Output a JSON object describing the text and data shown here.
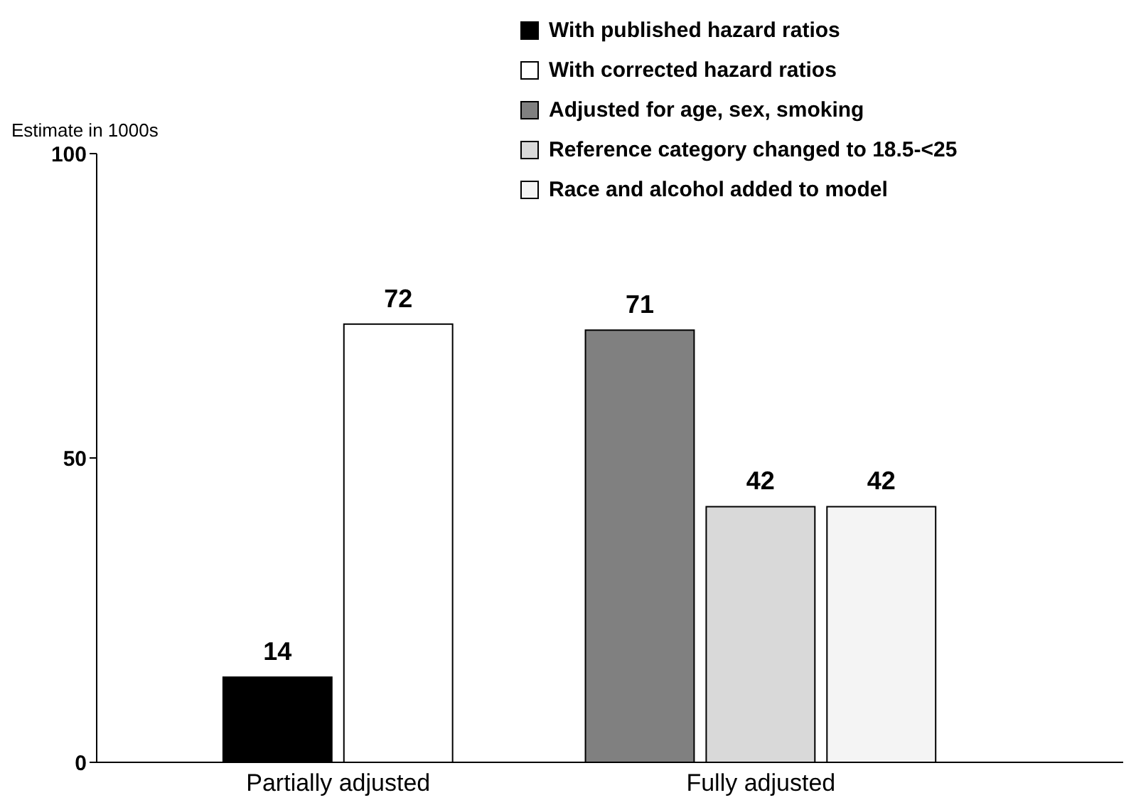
{
  "chart_data": {
    "type": "bar",
    "ylabel": "Estimate in 1000s",
    "categories": [
      "Partially adjusted",
      "Fully adjusted"
    ],
    "series": [
      {
        "name": "With published hazard ratios",
        "color": "#000000",
        "values": [
          14,
          null
        ]
      },
      {
        "name": "With corrected hazard ratios",
        "color": "#ffffff",
        "values": [
          72,
          null
        ]
      },
      {
        "name": "Adjusted for age, sex, smoking",
        "color": "#808080",
        "values": [
          null,
          71
        ]
      },
      {
        "name": "Reference category changed to 18.5-<25",
        "color": "#d9d9d9",
        "values": [
          null,
          42
        ]
      },
      {
        "name": "Race and alcohol added to model",
        "color": "#f4f4f4",
        "values": [
          null,
          42
        ]
      }
    ],
    "ylim": [
      0,
      100
    ],
    "yticks": [
      0,
      50,
      100
    ],
    "legend": "top right",
    "data_labels": true
  }
}
